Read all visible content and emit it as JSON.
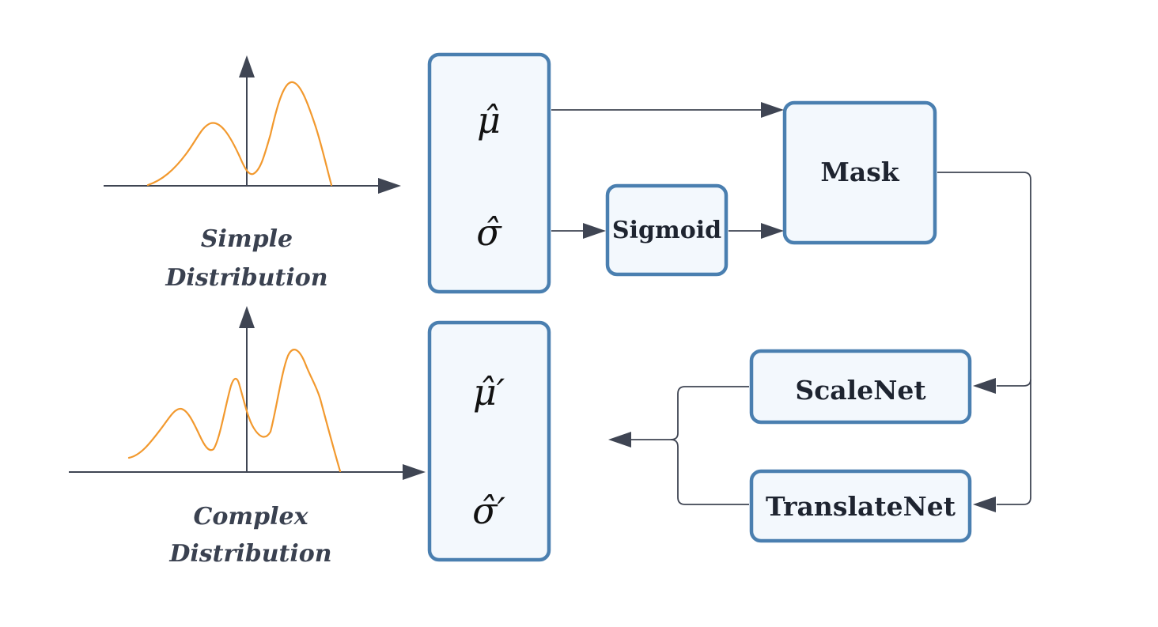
{
  "simple_distribution": {
    "label_line1": "Simple",
    "label_line2": "Distribution"
  },
  "complex_distribution": {
    "label_line1": "Complex",
    "label_line2": "Distribution"
  },
  "params_box": {
    "mu": "μ̂",
    "sigma": "σ̂"
  },
  "params_prime_box": {
    "mu": "μ̂′",
    "sigma": "σ̂′"
  },
  "nodes": {
    "sigmoid": "Sigmoid",
    "mask": "Mask",
    "scalenet": "ScaleNet",
    "translatenet": "TranslateNet"
  },
  "colors": {
    "box_border": "#4a7fb0",
    "box_fill": "#f3f8fd",
    "curve": "#f2992e",
    "arrow": "#3f4553"
  }
}
